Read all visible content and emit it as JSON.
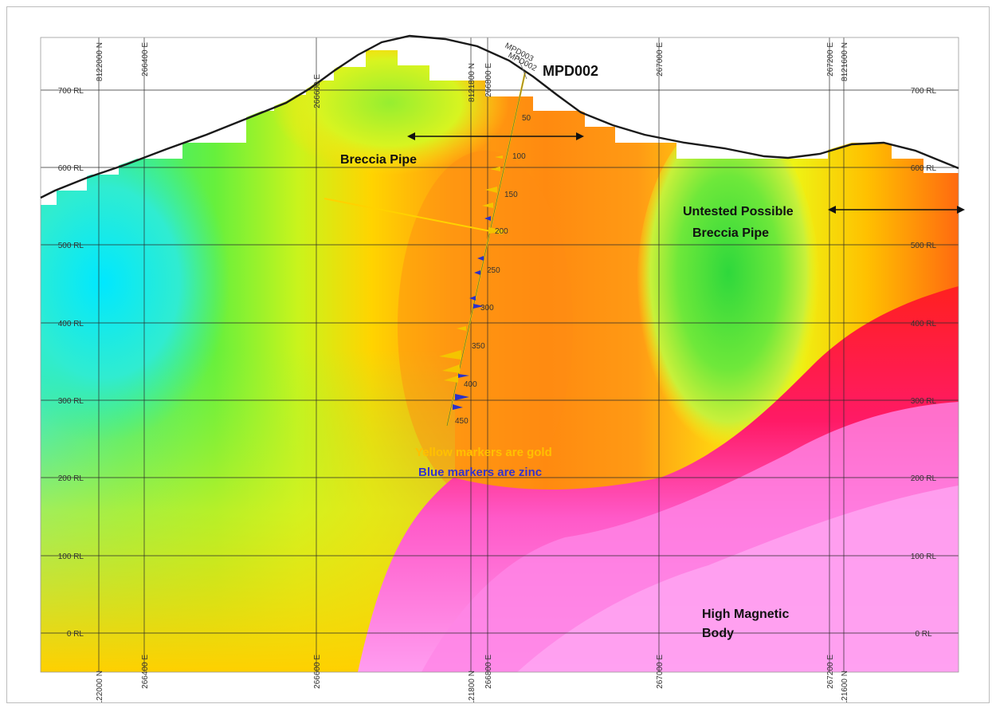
{
  "section": {
    "hole_label": "MPD002",
    "collar_tags": [
      "MPD003",
      "MPD002"
    ],
    "rl_labels": [
      "700 RL",
      "600 RL",
      "500 RL",
      "400 RL",
      "300 RL",
      "200 RL",
      "100 RL",
      "0 RL"
    ],
    "grid_labels": [
      "8122000 N",
      "266400 E",
      "266600 E",
      "8121800 N",
      "266800 E",
      "267000 E",
      "267200 E",
      "8121600 N"
    ],
    "depth_labels": [
      "50",
      "100",
      "150",
      "200",
      "250",
      "300",
      "350",
      "400",
      "450"
    ],
    "annotations": {
      "breccia_pipe": "Breccia Pipe",
      "untested_line1": "Untested Possible",
      "untested_line2": "Breccia Pipe",
      "high_mag_line1": "High Magnetic",
      "high_mag_line2": "Body",
      "yellow_note": "Yellow markers are gold",
      "blue_note": "Blue markers are zinc"
    },
    "colors": {
      "gold_marker": "#f4c400",
      "zinc_marker": "#2b32c8",
      "surface": "#1a1a1a",
      "yellow_note": "#ffc000",
      "blue_note": "#3333cc"
    }
  }
}
